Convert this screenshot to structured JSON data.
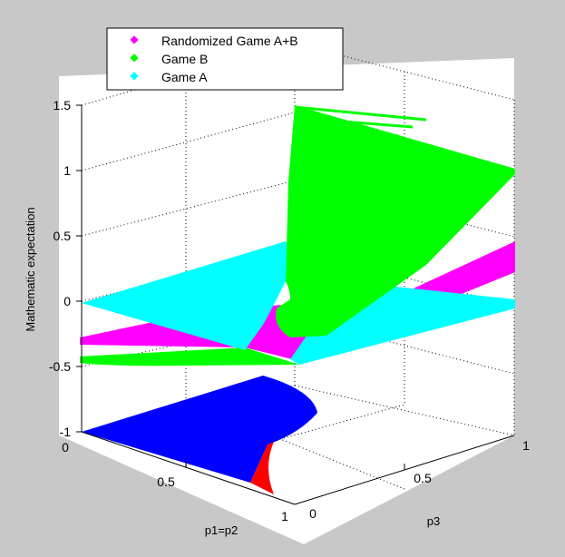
{
  "colors": {
    "figure_background": "#c8c8c8",
    "axes_background": "#ffffff",
    "randomized_game_ab": "#ff00ff",
    "game_b": "#00ff00",
    "game_a": "#00ffff",
    "projection_blue": "#0000ff",
    "projection_red": "#ff0000"
  },
  "chart_data": {
    "type": "surface3d",
    "title": "",
    "xlabel": "p1=p2",
    "ylabel": "p3",
    "zlabel": "Mathematic expectation",
    "xlim": [
      0,
      1
    ],
    "ylim": [
      0,
      1
    ],
    "zlim": [
      -1,
      1.5
    ],
    "xticks": [
      "0",
      "0.5",
      "1"
    ],
    "yticks": [
      "0",
      "0.5",
      "1"
    ],
    "zticks": [
      "-1",
      "-0.5",
      "0",
      "0.5",
      "1",
      "1.5"
    ],
    "grid": true,
    "legend_position": "top-left",
    "legend": [
      {
        "label": "Randomized Game A+B",
        "color": "#ff00ff"
      },
      {
        "label": "Game B",
        "color": "#00ff00"
      },
      {
        "label": "Game A",
        "color": "#00ffff"
      }
    ],
    "series": [
      {
        "name": "Game A",
        "color": "#00ffff",
        "corner_values": [
          {
            "x": 0,
            "y": 0,
            "z": 0.0
          },
          {
            "x": 0,
            "y": 1,
            "z": 0.45
          },
          {
            "x": 1,
            "y": 1,
            "z": 0.0
          },
          {
            "x": 1,
            "y": 0,
            "z": -0.45
          }
        ]
      },
      {
        "name": "Game B",
        "color": "#00ff00",
        "corner_values": [
          {
            "x": 0,
            "y": 0,
            "z": -0.45
          },
          {
            "x": 0,
            "y": 1,
            "z": 1.45
          },
          {
            "x": 1,
            "y": 1,
            "z": 1.0
          },
          {
            "x": 1,
            "y": 0,
            "z": -0.5
          }
        ]
      },
      {
        "name": "Randomized Game A+B",
        "color": "#ff00ff",
        "corner_values": [
          {
            "x": 0,
            "y": 0,
            "z": -0.3
          },
          {
            "x": 0,
            "y": 1,
            "z": 0.3
          },
          {
            "x": 1,
            "y": 1,
            "z": 0.45
          },
          {
            "x": 1,
            "y": 0,
            "z": -0.45
          }
        ]
      }
    ]
  }
}
